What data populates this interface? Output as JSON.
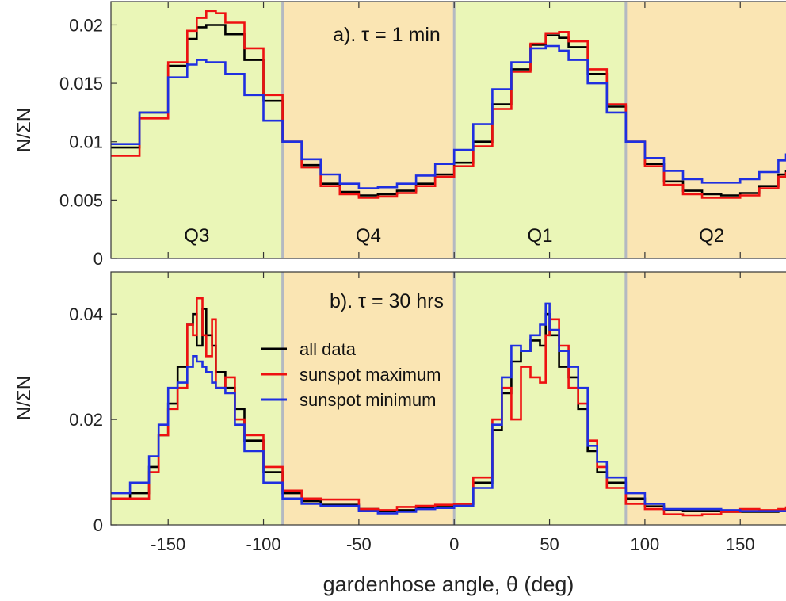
{
  "chart_data": {
    "type": "line",
    "x_label": "gardenhose angle, θ (deg)",
    "x_ticks": [
      -150,
      -100,
      -50,
      0,
      50,
      100,
      150
    ],
    "xlim": [
      -180,
      174
    ],
    "quadrant_boundaries": [
      -90,
      0,
      90
    ],
    "colors": {
      "quadrant_odd": "#eaf6b7",
      "quadrant_even": "#fae5b3",
      "boundary": "#b4b9c2",
      "all_data": "#000000",
      "sunspot_max": "#ee1111",
      "sunspot_min": "#1f2fe0"
    },
    "legend": {
      "placement": "center (panel b)",
      "entries": [
        {
          "label": "all data",
          "color": "#000000"
        },
        {
          "label": "sunspot maximum",
          "color": "#ee1111"
        },
        {
          "label": "sunspot minimum",
          "color": "#1f2fe0"
        }
      ]
    },
    "panels": [
      {
        "id": "a",
        "title": "a). τ = 1 min",
        "y_label": "N/ΣN",
        "ylim": [
          0,
          0.022
        ],
        "y_ticks": [
          0,
          0.005,
          0.01,
          0.015,
          0.02
        ],
        "y_tick_labels": [
          "0",
          "0.005",
          "0.01",
          "0.015",
          "0.02"
        ],
        "quadrant_labels": [
          {
            "text": "Q3",
            "x": -135
          },
          {
            "text": "Q4",
            "x": -45
          },
          {
            "text": "Q1",
            "x": 45
          },
          {
            "text": "Q2",
            "x": 135
          }
        ],
        "series": [
          {
            "name": "all data",
            "color": "#000000",
            "x": [
              -180,
              -165,
              -150,
              -140,
              -135,
              -130,
              -120,
              -110,
              -100,
              -90,
              -80,
              -70,
              -60,
              -50,
              -45,
              -40,
              -30,
              -20,
              -10,
              0,
              10,
              20,
              30,
              40,
              48,
              55,
              60,
              70,
              80,
              90,
              100,
              110,
              120,
              130,
              140,
              150,
              160,
              170,
              174
            ],
            "y": [
              0.0095,
              0.0125,
              0.0165,
              0.0188,
              0.0198,
              0.02,
              0.0192,
              0.017,
              0.0135,
              0.01,
              0.008,
              0.0064,
              0.0057,
              0.0054,
              0.0054,
              0.0055,
              0.0058,
              0.0064,
              0.0072,
              0.0082,
              0.01,
              0.0132,
              0.0162,
              0.0183,
              0.0191,
              0.0189,
              0.0181,
              0.0158,
              0.013,
              0.01,
              0.0081,
              0.0066,
              0.0058,
              0.0055,
              0.0054,
              0.0056,
              0.0062,
              0.0072,
              0.0076
            ]
          },
          {
            "name": "sunspot maximum",
            "color": "#ee1111",
            "x": [
              -180,
              -165,
              -150,
              -140,
              -135,
              -130,
              -125,
              -120,
              -110,
              -100,
              -90,
              -80,
              -70,
              -60,
              -50,
              -45,
              -40,
              -30,
              -20,
              -10,
              0,
              10,
              20,
              30,
              40,
              48,
              55,
              60,
              70,
              80,
              90,
              100,
              110,
              120,
              130,
              140,
              150,
              160,
              170,
              174
            ],
            "y": [
              0.0088,
              0.012,
              0.0168,
              0.0195,
              0.0206,
              0.0212,
              0.021,
              0.0202,
              0.018,
              0.014,
              0.01,
              0.0078,
              0.0062,
              0.0055,
              0.0052,
              0.0052,
              0.0053,
              0.0056,
              0.0062,
              0.007,
              0.0079,
              0.0096,
              0.0128,
              0.016,
              0.0184,
              0.0193,
              0.0194,
              0.0186,
              0.0162,
              0.0132,
              0.01,
              0.0079,
              0.0063,
              0.0055,
              0.0052,
              0.0052,
              0.0054,
              0.006,
              0.007,
              0.0074
            ]
          },
          {
            "name": "sunspot minimum",
            "color": "#1f2fe0",
            "x": [
              -180,
              -165,
              -150,
              -140,
              -135,
              -130,
              -120,
              -110,
              -100,
              -90,
              -80,
              -70,
              -60,
              -50,
              -40,
              -30,
              -20,
              -10,
              0,
              10,
              20,
              30,
              40,
              48,
              55,
              60,
              70,
              80,
              90,
              100,
              110,
              120,
              130,
              140,
              150,
              160,
              170,
              174
            ],
            "y": [
              0.0098,
              0.0125,
              0.0155,
              0.0166,
              0.017,
              0.0168,
              0.0158,
              0.014,
              0.0118,
              0.01,
              0.0085,
              0.0072,
              0.0064,
              0.006,
              0.0061,
              0.0064,
              0.0071,
              0.0081,
              0.0093,
              0.0115,
              0.0145,
              0.0168,
              0.018,
              0.0182,
              0.0178,
              0.017,
              0.015,
              0.0125,
              0.01,
              0.0086,
              0.0075,
              0.0068,
              0.0065,
              0.0065,
              0.0068,
              0.0074,
              0.0084,
              0.009
            ]
          }
        ]
      },
      {
        "id": "b",
        "title": "b). τ = 30 hrs",
        "y_label": "N/ΣN",
        "ylim": [
          0,
          0.048
        ],
        "y_ticks": [
          0,
          0.02,
          0.04
        ],
        "y_tick_labels": [
          "0",
          "0.02",
          "0.04"
        ],
        "series": [
          {
            "name": "all data",
            "color": "#000000",
            "x": [
              -180,
              -170,
              -160,
              -155,
              -150,
              -145,
              -140,
              -137,
              -135,
              -132,
              -130,
              -127,
              -125,
              -120,
              -115,
              -110,
              -100,
              -90,
              -80,
              -70,
              -50,
              -40,
              -30,
              -20,
              -10,
              0,
              10,
              20,
              25,
              30,
              35,
              40,
              45,
              48,
              50,
              55,
              60,
              65,
              70,
              75,
              80,
              90,
              100,
              110,
              120,
              130,
              140,
              150,
              160,
              170,
              174
            ],
            "y": [
              0.005,
              0.006,
              0.011,
              0.017,
              0.023,
              0.03,
              0.038,
              0.04,
              0.034,
              0.041,
              0.036,
              0.034,
              0.029,
              0.026,
              0.022,
              0.016,
              0.01,
              0.006,
              0.0045,
              0.0038,
              0.003,
              0.0026,
              0.0028,
              0.0032,
              0.0034,
              0.004,
              0.008,
              0.018,
              0.025,
              0.031,
              0.033,
              0.035,
              0.034,
              0.04,
              0.036,
              0.03,
              0.028,
              0.022,
              0.014,
              0.01,
              0.008,
              0.005,
              0.0035,
              0.0028,
              0.0026,
              0.0026,
              0.0025,
              0.0025,
              0.0025,
              0.0026,
              0.0027
            ]
          },
          {
            "name": "sunspot maximum",
            "color": "#ee1111",
            "x": [
              -180,
              -170,
              -160,
              -155,
              -150,
              -145,
              -140,
              -137,
              -135,
              -132,
              -130,
              -127,
              -125,
              -120,
              -115,
              -110,
              -100,
              -90,
              -80,
              -70,
              -50,
              -40,
              -30,
              -20,
              -10,
              0,
              10,
              20,
              25,
              30,
              35,
              40,
              45,
              48,
              50,
              55,
              60,
              65,
              70,
              75,
              80,
              90,
              100,
              110,
              120,
              130,
              140,
              150,
              160,
              170,
              174
            ],
            "y": [
              0.005,
              0.005,
              0.01,
              0.017,
              0.022,
              0.026,
              0.038,
              0.036,
              0.043,
              0.036,
              0.032,
              0.039,
              0.026,
              0.028,
              0.02,
              0.017,
              0.011,
              0.0065,
              0.005,
              0.0048,
              0.003,
              0.0028,
              0.0034,
              0.0036,
              0.0038,
              0.004,
              0.009,
              0.02,
              0.026,
              0.02,
              0.03,
              0.028,
              0.027,
              0.036,
              0.039,
              0.034,
              0.026,
              0.023,
              0.016,
              0.011,
              0.007,
              0.004,
              0.003,
              0.002,
              0.0018,
              0.002,
              0.0025,
              0.003,
              0.0028,
              0.003,
              0.0035
            ]
          },
          {
            "name": "sunspot minimum",
            "color": "#1f2fe0",
            "x": [
              -180,
              -170,
              -160,
              -155,
              -150,
              -145,
              -140,
              -137,
              -135,
              -132,
              -130,
              -127,
              -125,
              -120,
              -115,
              -110,
              -100,
              -90,
              -80,
              -70,
              -50,
              -40,
              -30,
              -20,
              -10,
              0,
              10,
              20,
              25,
              30,
              35,
              40,
              45,
              48,
              50,
              55,
              60,
              65,
              70,
              75,
              80,
              90,
              100,
              110,
              120,
              130,
              140,
              150,
              160,
              170,
              174
            ],
            "y": [
              0.006,
              0.008,
              0.013,
              0.019,
              0.026,
              0.027,
              0.03,
              0.032,
              0.031,
              0.03,
              0.029,
              0.027,
              0.026,
              0.025,
              0.019,
              0.014,
              0.008,
              0.005,
              0.004,
              0.0036,
              0.0026,
              0.0022,
              0.0025,
              0.003,
              0.0032,
              0.0036,
              0.007,
              0.019,
              0.028,
              0.034,
              0.033,
              0.036,
              0.038,
              0.042,
              0.037,
              0.033,
              0.03,
              0.026,
              0.015,
              0.012,
              0.009,
              0.006,
              0.004,
              0.003,
              0.003,
              0.003,
              0.0028,
              0.0026,
              0.0026,
              0.0026,
              0.0028
            ]
          }
        ]
      }
    ]
  }
}
